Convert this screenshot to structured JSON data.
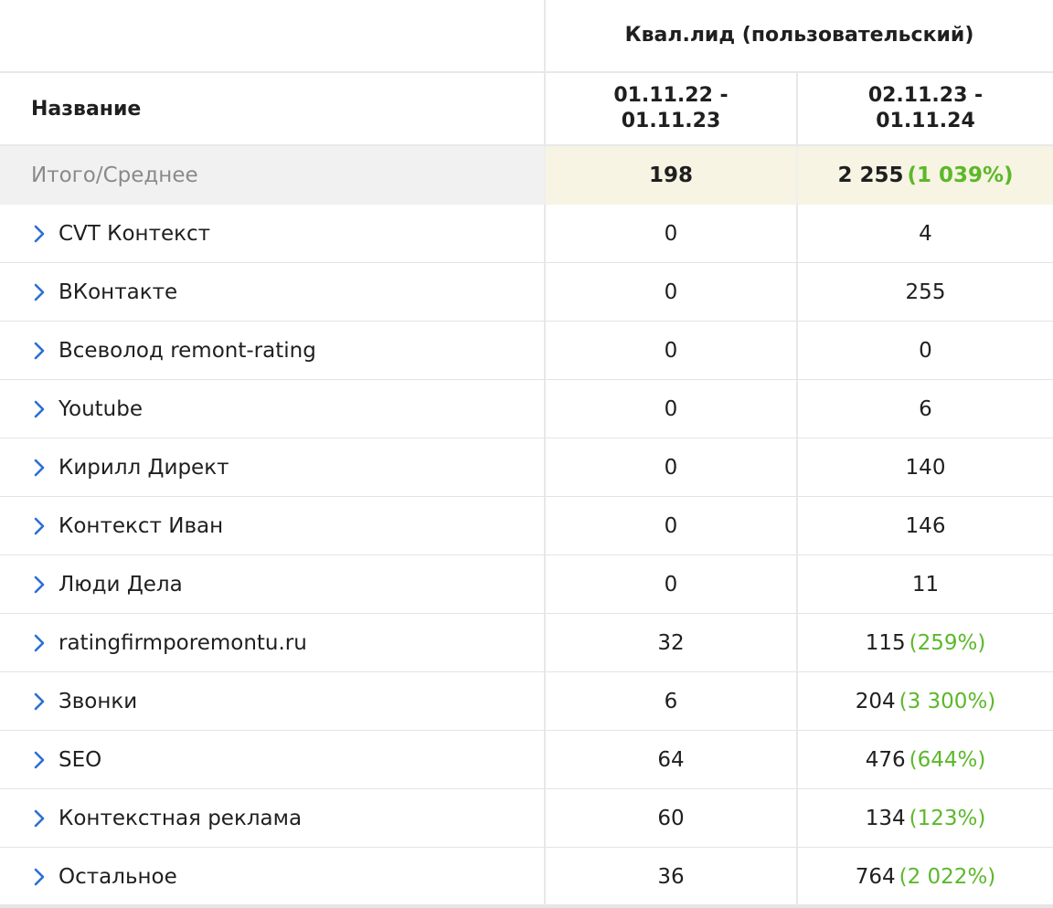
{
  "header": {
    "group_title": "Квал.лид (пользовательский)",
    "name_column": "Название",
    "period1": "01.11.22 -\n01.11.23",
    "period1_line1": "01.11.22 -",
    "period1_line2": "01.11.23",
    "period2_line1": "02.11.23 -",
    "period2_line2": "01.11.24"
  },
  "total": {
    "label": "Итого/Среднее",
    "v1": "198",
    "v2": "2 255",
    "v2_change": "(1 039%)"
  },
  "rows": [
    {
      "name": "CVT Контекст",
      "v1": "0",
      "v2": "4",
      "change": ""
    },
    {
      "name": "ВКонтакте",
      "v1": "0",
      "v2": "255",
      "change": ""
    },
    {
      "name": "Всеволод remont-rating",
      "v1": "0",
      "v2": "0",
      "change": ""
    },
    {
      "name": "Youtube",
      "v1": "0",
      "v2": "6",
      "change": ""
    },
    {
      "name": "Кирилл Директ",
      "v1": "0",
      "v2": "140",
      "change": ""
    },
    {
      "name": "Контекст Иван",
      "v1": "0",
      "v2": "146",
      "change": ""
    },
    {
      "name": "Люди Дела",
      "v1": "0",
      "v2": "11",
      "change": ""
    },
    {
      "name": "ratingfirmporemontu.ru",
      "v1": "32",
      "v2": "115",
      "change": "(259%)"
    },
    {
      "name": "Звонки",
      "v1": "6",
      "v2": "204",
      "change": "(3 300%)"
    },
    {
      "name": "SEO",
      "v1": "64",
      "v2": "476",
      "change": "(644%)"
    },
    {
      "name": "Контекстная реклама",
      "v1": "60",
      "v2": "134",
      "change": "(123%)"
    },
    {
      "name": "Остальное",
      "v1": "36",
      "v2": "764",
      "change": "(2 022%)"
    }
  ],
  "icons": {
    "expand": "chevron-right-icon"
  },
  "colors": {
    "chevron": "#2a6fd6",
    "positive_change": "#5cb82a",
    "total_highlight": "#f7f4e3",
    "total_label_bg": "#f1f1f2"
  }
}
